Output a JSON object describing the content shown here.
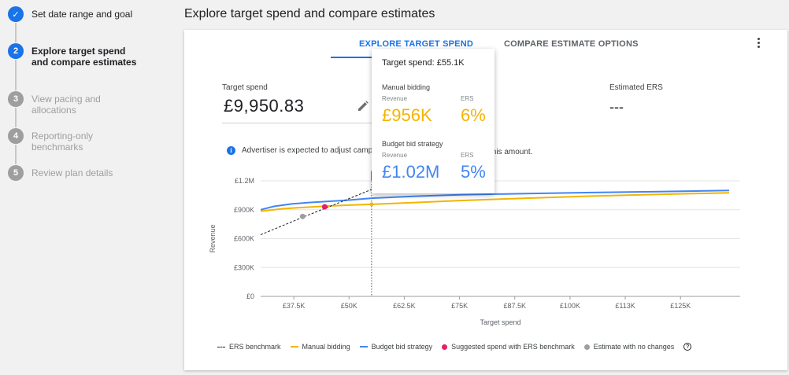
{
  "stepper": {
    "steps": [
      {
        "label": "Set date range and goal",
        "number": "✓",
        "state": "done"
      },
      {
        "label": "Explore target spend and compare estimates",
        "number": "2",
        "state": "active"
      },
      {
        "label": "View pacing and allocations",
        "number": "3",
        "state": "inactive"
      },
      {
        "label": "Reporting-only benchmarks",
        "number": "4",
        "state": "inactive"
      },
      {
        "label": "Review plan details",
        "number": "5",
        "state": "inactive"
      }
    ],
    "colors": {
      "done": "#1a73e8",
      "active": "#1a73e8",
      "inactive": "#9e9e9e"
    }
  },
  "page_title": "Explore target spend and compare estimates",
  "tabs": [
    {
      "label": "EXPLORE TARGET SPEND",
      "active": true
    },
    {
      "label": "COMPARE ESTIMATE OPTIONS",
      "active": false
    }
  ],
  "target_spend": {
    "label": "Target spend",
    "value": "£9,950.83"
  },
  "estimated_ers": {
    "label": "Estimated ERS",
    "value": "---"
  },
  "info_message": {
    "start": "Advertiser is expected to adjust campa",
    "end": "this amount."
  },
  "tooltip": {
    "title": "Target spend:  £55.1K",
    "manual": {
      "heading": "Manual bidding",
      "revenue_label": "Revenue",
      "revenue": "£956K",
      "ers_label": "ERS",
      "ers": "6%"
    },
    "budget": {
      "heading": "Budget bid strategy",
      "revenue_label": "Revenue",
      "revenue": "£1.02M",
      "ers_label": "ERS",
      "ers": "5%"
    }
  },
  "legend": [
    {
      "label": "ERS benchmark",
      "kind": "dash",
      "color": "#222222"
    },
    {
      "label": "Manual bidding",
      "kind": "line",
      "color": "#f4b400"
    },
    {
      "label": "Budget bid strategy",
      "kind": "line",
      "color": "#4285f4"
    },
    {
      "label": "Suggested spend with ERS benchmark",
      "kind": "dot",
      "color": "#e91e63"
    },
    {
      "label": "Estimate with no changes",
      "kind": "dot",
      "color": "#9e9e9e"
    }
  ],
  "chart_data": {
    "type": "line",
    "xlabel": "Target spend",
    "ylabel": "Revenue",
    "x_ticks": [
      "£37.5K",
      "£50K",
      "£62.5K",
      "£75K",
      "£87.5K",
      "£100K",
      "£113K",
      "£125K"
    ],
    "x_tick_values": [
      37500,
      50000,
      62500,
      75000,
      87500,
      100000,
      112500,
      125000
    ],
    "y_ticks": [
      "£0",
      "£300K",
      "£600K",
      "£900K",
      "£1.2M"
    ],
    "y_tick_values": [
      0,
      300000,
      600000,
      900000,
      1200000
    ],
    "xlim": [
      30000,
      138500
    ],
    "ylim": [
      0,
      1200000
    ],
    "grid": true,
    "hover_x": 55100,
    "series": [
      {
        "name": "Manual bidding",
        "color": "#f4b400",
        "x": [
          30000,
          35000,
          40000,
          45000,
          50000,
          55100,
          65000,
          75000,
          90000,
          105000,
          120000,
          136000
        ],
        "y": [
          885000,
          910000,
          925000,
          938000,
          948000,
          956000,
          975000,
          995000,
          1020000,
          1042000,
          1060000,
          1075000
        ]
      },
      {
        "name": "Budget bid strategy",
        "color": "#4285f4",
        "x": [
          30000,
          33000,
          37000,
          41000,
          45000,
          50000,
          55100,
          65000,
          75000,
          90000,
          105000,
          120000,
          136000
        ],
        "y": [
          900000,
          935000,
          960000,
          975000,
          985000,
          1000000,
          1020000,
          1040000,
          1055000,
          1068000,
          1078000,
          1088000,
          1100000
        ]
      },
      {
        "name": "ERS benchmark",
        "color": "#222222",
        "x": [
          30000,
          40000,
          46000,
          55100
        ],
        "y": [
          640000,
          830000,
          940000,
          1110000
        ]
      }
    ],
    "points": [
      {
        "name": "Suggested spend with ERS benchmark",
        "x": 44500,
        "y": 930000,
        "color": "#e91e63"
      },
      {
        "name": "Estimate with no changes",
        "x": 39500,
        "y": 830000,
        "color": "#9e9e9e"
      }
    ]
  }
}
